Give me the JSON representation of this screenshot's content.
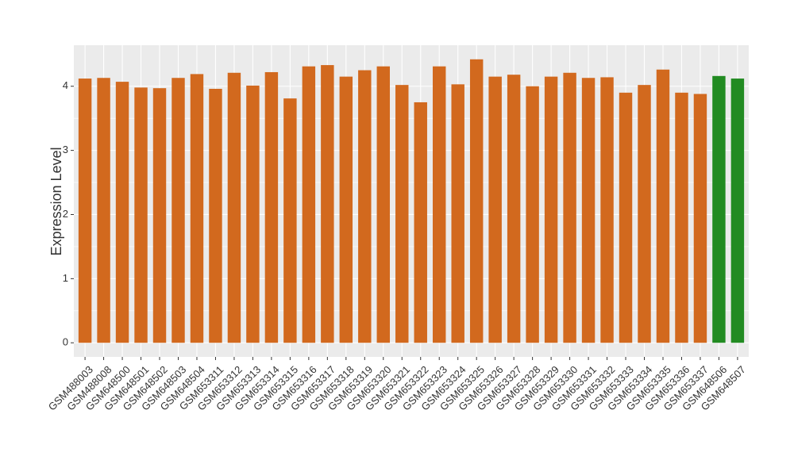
{
  "chart_data": {
    "type": "bar",
    "y_label": "Expression Level",
    "categories": [
      "GSM488003",
      "GSM488008",
      "GSM648500",
      "GSM648501",
      "GSM648502",
      "GSM648503",
      "GSM648504",
      "GSM653311",
      "GSM653312",
      "GSM653313",
      "GSM653314",
      "GSM653315",
      "GSM653316",
      "GSM653317",
      "GSM653318",
      "GSM653319",
      "GSM653320",
      "GSM653321",
      "GSM653322",
      "GSM653323",
      "GSM653324",
      "GSM653325",
      "GSM653326",
      "GSM653327",
      "GSM653328",
      "GSM653329",
      "GSM653330",
      "GSM653331",
      "GSM653332",
      "GSM653333",
      "GSM653334",
      "GSM653335",
      "GSM653336",
      "GSM653337",
      "GSM648506",
      "GSM648507"
    ],
    "values": [
      4.12,
      4.13,
      4.07,
      3.98,
      3.97,
      4.13,
      4.19,
      3.96,
      4.21,
      4.01,
      4.22,
      3.81,
      4.31,
      4.33,
      4.15,
      4.25,
      4.31,
      4.02,
      3.75,
      4.31,
      4.03,
      4.42,
      4.15,
      4.18,
      4.0,
      4.15,
      4.21,
      4.13,
      4.14,
      3.9,
      4.02,
      4.26,
      3.9,
      3.88,
      4.16,
      4.12
    ],
    "colors": [
      "#d2691e",
      "#d2691e",
      "#d2691e",
      "#d2691e",
      "#d2691e",
      "#d2691e",
      "#d2691e",
      "#d2691e",
      "#d2691e",
      "#d2691e",
      "#d2691e",
      "#d2691e",
      "#d2691e",
      "#d2691e",
      "#d2691e",
      "#d2691e",
      "#d2691e",
      "#d2691e",
      "#d2691e",
      "#d2691e",
      "#d2691e",
      "#d2691e",
      "#d2691e",
      "#d2691e",
      "#d2691e",
      "#d2691e",
      "#d2691e",
      "#d2691e",
      "#d2691e",
      "#d2691e",
      "#d2691e",
      "#d2691e",
      "#d2691e",
      "#d2691e",
      "#228b22",
      "#228b22"
    ],
    "ylim": [
      -0.22,
      4.64
    ],
    "yticks": [
      0,
      1,
      2,
      3,
      4
    ],
    "grid": true
  }
}
